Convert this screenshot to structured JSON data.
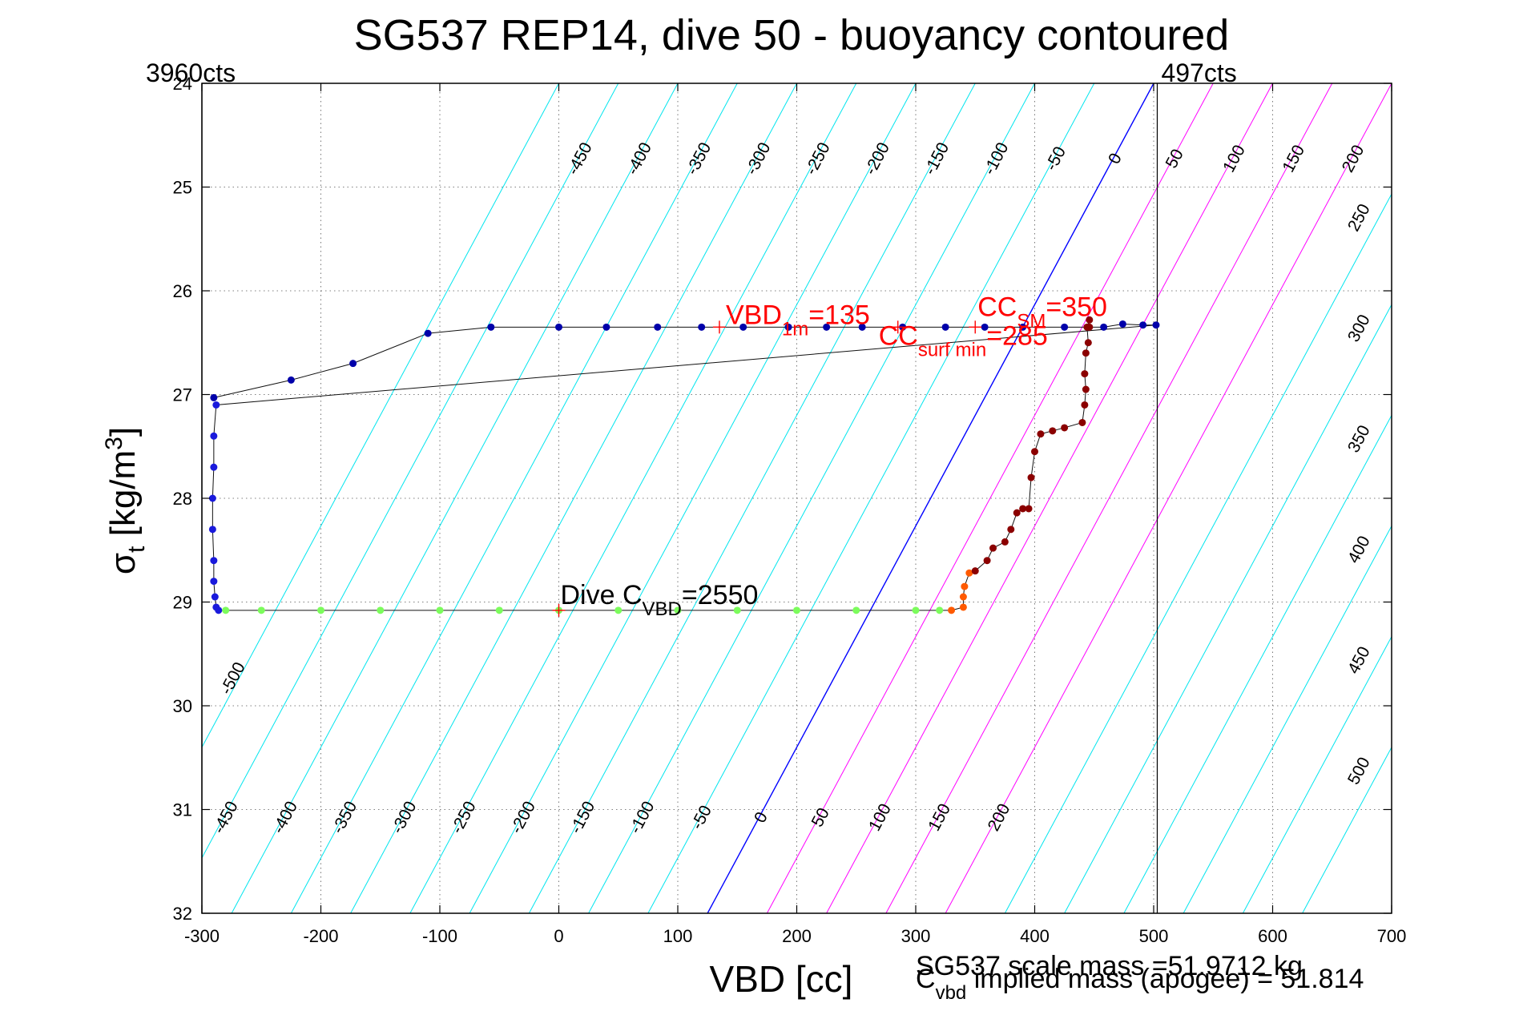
{
  "chart_data": {
    "type": "scatter",
    "title": "SG537 REP14, dive 50 - buoyancy contoured",
    "xlabel": "VBD [cc]",
    "ylabel": "σt [kg/m3]",
    "xlim": [
      -300,
      700
    ],
    "ylim": [
      24,
      32
    ],
    "y_reversed": true,
    "grid": true,
    "x_ticks": [
      -300,
      -200,
      -100,
      0,
      100,
      200,
      300,
      400,
      500,
      600,
      700
    ],
    "y_ticks": [
      24,
      25,
      26,
      27,
      28,
      29,
      30,
      31,
      32
    ],
    "vertical_lines": [
      {
        "x": -300,
        "label": "3960cts"
      },
      {
        "x": 503,
        "label": "497cts"
      }
    ],
    "contours": {
      "levels": [
        -500,
        -450,
        -400,
        -350,
        -300,
        -250,
        -200,
        -150,
        -100,
        -50,
        0,
        50,
        100,
        150,
        200,
        250,
        300,
        350,
        400,
        450,
        500
      ],
      "zero_x_at_top": 500,
      "zero_x_at_bottom": 125,
      "colors": {
        "negative": "#00e5ee",
        "zero": "#0000ff",
        "positive_low": "#ff00ff",
        "positive_high": "#00e5ee"
      },
      "top_labels": [
        "-450",
        "-400",
        "-350",
        "-300",
        "-250",
        "-200",
        "-150",
        "-100",
        "-50",
        "0",
        "50",
        "100",
        "150",
        "200"
      ],
      "bottom_labels": [
        "-450",
        "-400",
        "-350",
        "-300",
        "-250",
        "-200",
        "-150",
        "-100",
        "-50",
        "0",
        "50",
        "100",
        "150",
        "200"
      ],
      "right_labels": [
        "250",
        "300",
        "350",
        "400",
        "450",
        "500"
      ],
      "left_labels": [
        "-500"
      ]
    },
    "series": [
      {
        "color": "#0000aa",
        "x": [
          -290,
          -225,
          -173,
          -110,
          -57,
          0,
          40,
          83,
          120,
          155,
          193,
          225,
          255,
          289,
          325,
          358,
          390,
          425,
          458,
          474,
          491,
          502
        ],
        "y": [
          27.03,
          26.86,
          26.7,
          26.41,
          26.35,
          26.35,
          26.35,
          26.35,
          26.35,
          26.35,
          26.35,
          26.35,
          26.35,
          26.35,
          26.35,
          26.35,
          26.35,
          26.35,
          26.35,
          26.32,
          26.33,
          26.33
        ]
      },
      {
        "color": "#1a1adc",
        "x": [
          -288,
          -290,
          -290,
          -291,
          -291,
          -290,
          -290,
          -289,
          -288,
          -286
        ],
        "y": [
          27.1,
          27.4,
          27.7,
          28.0,
          28.3,
          28.6,
          28.8,
          28.95,
          29.05,
          29.08
        ]
      },
      {
        "color": "#7cfc5c",
        "x": [
          -280,
          -250,
          -200,
          -150,
          -100,
          -50,
          0,
          50,
          100,
          150,
          200,
          250,
          300,
          320
        ],
        "y": [
          29.08,
          29.08,
          29.08,
          29.08,
          29.08,
          29.08,
          29.08,
          29.08,
          29.08,
          29.08,
          29.08,
          29.08,
          29.08,
          29.08
        ]
      },
      {
        "color": "#ff5a00",
        "x": [
          330,
          340,
          340,
          341,
          345
        ],
        "y": [
          29.08,
          29.05,
          28.95,
          28.85,
          28.72
        ]
      },
      {
        "color": "#8b0000",
        "x": [
          350,
          360,
          365,
          375,
          380,
          385,
          390,
          395,
          397,
          400,
          405,
          415,
          425,
          440,
          442,
          443,
          442,
          443,
          445,
          444,
          446,
          446
        ],
        "y": [
          28.7,
          28.6,
          28.48,
          28.42,
          28.3,
          28.14,
          28.1,
          28.1,
          27.8,
          27.55,
          27.38,
          27.35,
          27.32,
          27.27,
          27.1,
          26.95,
          26.8,
          26.6,
          26.5,
          26.35,
          26.28,
          26.35
        ]
      }
    ],
    "markers": [
      {
        "x": 135,
        "y": 26.35,
        "color": "#ff0000"
      },
      {
        "x": 350,
        "y": 26.35,
        "color": "#ff0000"
      },
      {
        "x": 285,
        "y": 26.35,
        "color": "#ff0000"
      },
      {
        "x": 0,
        "y": 29.08,
        "color": "#ff0000"
      }
    ],
    "annotations": [
      {
        "text": "VBD",
        "sub": "1m",
        "suffix": "=135",
        "color": "#ff0000"
      },
      {
        "text": "CC",
        "sub": "SM",
        "suffix": "=350",
        "color": "#ff0000"
      },
      {
        "text": "CC",
        "sub": "surf min",
        "suffix": "=285",
        "color": "#ff0000"
      },
      {
        "text": "Dive C",
        "sub": "VBD",
        "suffix": "=2550",
        "color": "#000000"
      }
    ],
    "footer": {
      "scale_mass": "SG537 scale mass =51.9712 kg",
      "implied_prefix": "C",
      "implied_sub": "vbd",
      "implied_rest": " implied mass (apogee) = 51.814"
    }
  }
}
